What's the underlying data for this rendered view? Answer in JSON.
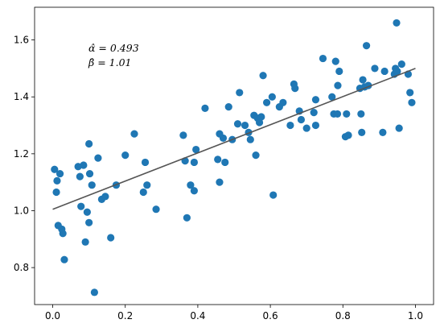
{
  "chart_data": {
    "type": "scatter",
    "title": "",
    "xlabel": "",
    "ylabel": "",
    "xlim": [
      -0.05,
      1.05
    ],
    "ylim": [
      0.67,
      1.715
    ],
    "xticks": [
      0.0,
      0.2,
      0.4,
      0.6,
      0.8,
      1.0
    ],
    "xtick_labels": [
      "0.0",
      "0.2",
      "0.4",
      "0.6",
      "0.8",
      "1.0"
    ],
    "yticks": [
      0.8,
      1.0,
      1.2,
      1.4,
      1.6
    ],
    "ytick_labels": [
      "0.8",
      "1.0",
      "1.2",
      "1.4",
      "1.6"
    ],
    "grid": false,
    "legend": null,
    "annotations": [
      "α̂ = 0.493",
      "β̂ = 1.01"
    ],
    "colors": {
      "points": "#1f77b4",
      "fit_line": "#555555"
    },
    "series": [
      {
        "kind": "points",
        "x": [
          0.005,
          0.01,
          0.012,
          0.015,
          0.02,
          0.025,
          0.028,
          0.032,
          0.07,
          0.075,
          0.078,
          0.085,
          0.09,
          0.095,
          0.1,
          0.1,
          0.102,
          0.108,
          0.115,
          0.125,
          0.135,
          0.145,
          0.16,
          0.175,
          0.2,
          0.225,
          0.25,
          0.255,
          0.26,
          0.285,
          0.36,
          0.365,
          0.37,
          0.38,
          0.39,
          0.39,
          0.395,
          0.42,
          0.455,
          0.46,
          0.46,
          0.47,
          0.475,
          0.485,
          0.495,
          0.51,
          0.515,
          0.53,
          0.54,
          0.545,
          0.555,
          0.56,
          0.565,
          0.57,
          0.575,
          0.58,
          0.59,
          0.605,
          0.608,
          0.625,
          0.635,
          0.655,
          0.665,
          0.668,
          0.68,
          0.685,
          0.7,
          0.72,
          0.725,
          0.725,
          0.745,
          0.77,
          0.775,
          0.78,
          0.785,
          0.786,
          0.79,
          0.807,
          0.81,
          0.815,
          0.847,
          0.85,
          0.852,
          0.855,
          0.86,
          0.865,
          0.87,
          0.888,
          0.91,
          0.915,
          0.942,
          0.945,
          0.948,
          0.95,
          0.955,
          0.962,
          0.98,
          0.985,
          0.99
        ],
        "y": [
          1.145,
          1.065,
          1.105,
          0.948,
          1.13,
          0.935,
          0.92,
          0.828,
          1.155,
          1.12,
          1.015,
          1.16,
          0.89,
          0.995,
          0.958,
          1.235,
          1.13,
          1.09,
          0.713,
          1.185,
          1.04,
          1.05,
          0.905,
          1.09,
          1.195,
          1.27,
          1.065,
          1.17,
          1.09,
          1.005,
          1.265,
          1.175,
          0.975,
          1.09,
          1.07,
          1.17,
          1.215,
          1.36,
          1.18,
          1.1,
          1.27,
          1.255,
          1.17,
          1.365,
          1.25,
          1.305,
          1.415,
          1.3,
          1.275,
          1.25,
          1.335,
          1.195,
          1.325,
          1.31,
          1.33,
          1.475,
          1.38,
          1.4,
          1.055,
          1.365,
          1.38,
          1.3,
          1.445,
          1.43,
          1.35,
          1.32,
          1.29,
          1.345,
          1.39,
          1.3,
          1.535,
          1.4,
          1.34,
          1.525,
          1.34,
          1.44,
          1.49,
          1.26,
          1.34,
          1.265,
          1.43,
          1.34,
          1.275,
          1.46,
          1.435,
          1.58,
          1.44,
          1.5,
          1.275,
          1.49,
          1.48,
          1.5,
          1.66,
          1.49,
          1.29,
          1.515,
          1.48,
          1.415,
          1.38
        ]
      },
      {
        "kind": "line",
        "x": [
          0.0,
          1.0
        ],
        "y": [
          1.005,
          1.5
        ]
      }
    ]
  }
}
